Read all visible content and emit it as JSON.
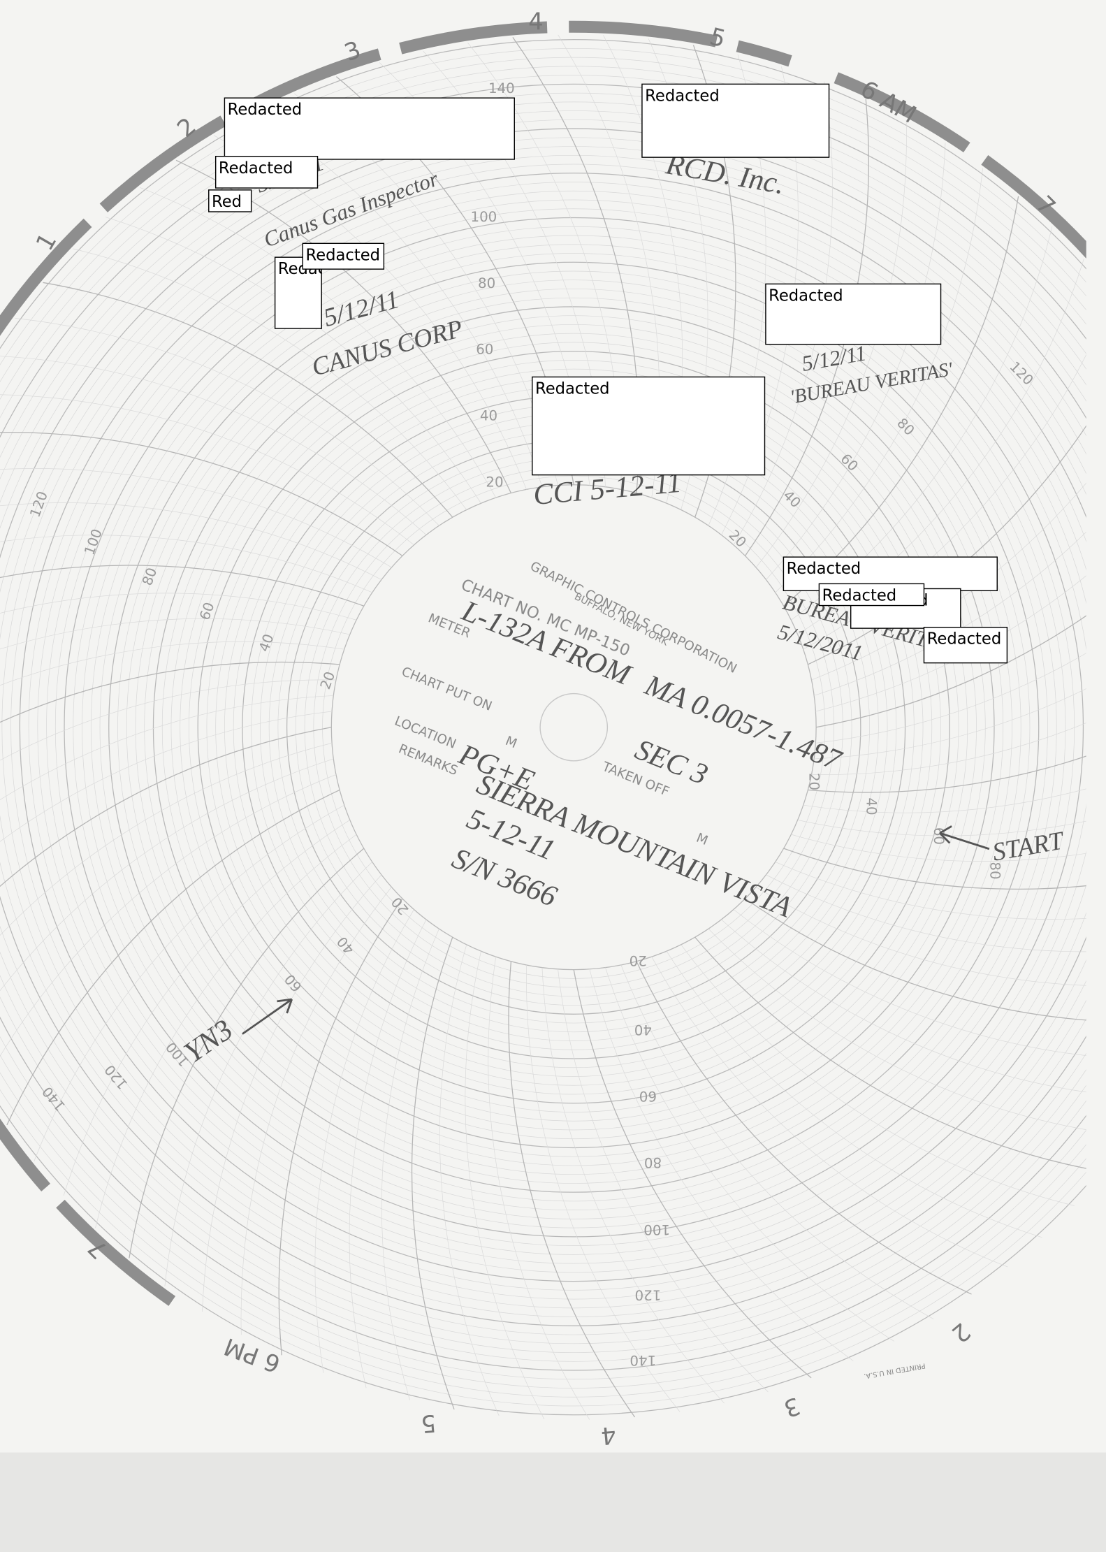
{
  "hour_labels_top": [
    "1",
    "2",
    "3",
    "4",
    "5",
    "6 AM",
    "7"
  ],
  "hour_labels_bottom": [
    "7",
    "6 PM",
    "5",
    "4",
    "3",
    "2"
  ],
  "scale_labels": {
    "up": [
      "20",
      "40",
      "60",
      "80",
      "100",
      "140"
    ],
    "left": [
      "20",
      "40",
      "60",
      "80",
      "100",
      "120"
    ],
    "down": [
      "20",
      "40",
      "60",
      "80",
      "100",
      "120",
      "140"
    ],
    "right": [
      "20",
      "40",
      "60",
      "80"
    ],
    "upper_right": [
      "20",
      "40",
      "60",
      "80",
      "120"
    ],
    "lower_left": [
      "20",
      "40",
      "60",
      "100",
      "120",
      "140"
    ]
  },
  "printed": {
    "company": "GRAPHIC CONTROLS CORPORATION",
    "city": "BUFFALO, NEW YORK",
    "chart_no": "CHART NO. MC MP-150",
    "meter": "METER",
    "chart_put_on": "CHART PUT ON",
    "m1": "M",
    "location": "LOCATION",
    "remarks": "REMARKS",
    "taken_off": "TAKEN OFF",
    "m2": "M",
    "printed_in": "PRINTED IN U.S.A."
  },
  "handwriting": {
    "line": "L-132A FROM",
    "milepost": "MA 0.0057-1.487",
    "section": "SEC 3",
    "company": "PG+E",
    "location": "SIERRA MOUNTAIN VISTA",
    "date": "5-12-11",
    "serial": "S/N 3666",
    "start": "START",
    "cci": "CCI 5-12-11",
    "rcd": "RCD. Inc.",
    "veritas_date": "5/12/11",
    "veritas": "'BUREAU VERITAS'",
    "boreal": "BUREAU VERITAS",
    "boreal_date": "5/12/2011",
    "canus_date": "5/12/11",
    "canus": "CANUS CORP",
    "canus_gas_date": "5/12/11",
    "canus_gas": "Canus Gas Inspector",
    "bottom_left": "YN3"
  },
  "redactions": [
    "Redacted",
    "Redacted",
    "Redacted",
    "Red",
    "Redacted",
    "Redacted",
    "Redacted",
    "Redacted",
    "Redacted",
    "Redacted",
    "Redacted",
    "Redacted"
  ]
}
